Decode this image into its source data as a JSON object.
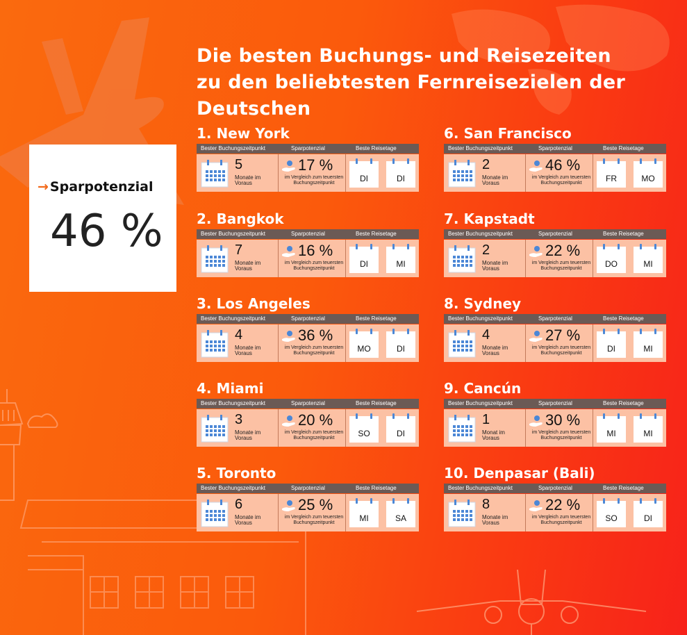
{
  "title_lines": [
    "Die besten Buchungs- und Reisezeiten",
    " zu den beliebtesten Fernreisezielen der",
    "Deutschen"
  ],
  "savings": {
    "arrow": "→",
    "label": "Sparpotenzial",
    "value": "46 %"
  },
  "colors": {
    "background_start": "#fa6a0e",
    "background_end": "#f7221a",
    "header_bar": "#6b5a55",
    "card_body": "#fcc1a4",
    "calendar_blue": "#4b87d6",
    "arrow_orange": "#f26a1b"
  },
  "icons": [
    "calendar-icon",
    "hand-coin-icon",
    "day-calendar-icon",
    "airplane-silhouette-icon",
    "control-tower-illustration",
    "world-map-illustration"
  ],
  "column_headers": {
    "booking": "Bester Buchungszeitpunkt",
    "savings": "Sparpotenzial",
    "days": "Beste Reisetage"
  },
  "destinations": [
    {
      "name": "1. New York",
      "months": "5",
      "months_label": "Monate im Voraus",
      "percent": "17 %",
      "percent_label": "im Vergleich zum teuersten Buchungszeitpunkt",
      "day1": "DI",
      "day2": "DI"
    },
    {
      "name": "2. Bangkok",
      "months": "7",
      "months_label": "Monate im Voraus",
      "percent": "16 %",
      "percent_label": "im Vergleich zum teuersten Buchungszeitpunkt",
      "day1": "DI",
      "day2": "MI"
    },
    {
      "name": "3. Los Angeles",
      "months": "4",
      "months_label": "Monate im Voraus",
      "percent": "36 %",
      "percent_label": "im Vergleich zum teuersten Buchungszeitpunkt",
      "day1": "MO",
      "day2": "DI"
    },
    {
      "name": "4. Miami",
      "months": "3",
      "months_label": "Monate im Voraus",
      "percent": "20 %",
      "percent_label": "im Vergleich zum teuersten Buchungszeitpunkt",
      "day1": "SO",
      "day2": "DI"
    },
    {
      "name": "5. Toronto",
      "months": "6",
      "months_label": "Monate im Voraus",
      "percent": "25 %",
      "percent_label": "im Vergleich zum teuersten Buchungszeitpunkt",
      "day1": "MI",
      "day2": "SA"
    },
    {
      "name": "6. San Francisco",
      "months": "2",
      "months_label": "Monate im Voraus",
      "percent": "46 %",
      "percent_label": "im Vergleich zum teuersten Buchungszeitpunkt",
      "day1": "FR",
      "day2": "MO"
    },
    {
      "name": "7. Kapstadt",
      "months": "2",
      "months_label": "Monate im Voraus",
      "percent": "22 %",
      "percent_label": "im Vergleich zum teuersten Buchungszeitpunkt",
      "day1": "DO",
      "day2": "MI"
    },
    {
      "name": "8. Sydney",
      "months": "4",
      "months_label": "Monate im Voraus",
      "percent": "27 %",
      "percent_label": "im Vergleich zum teuersten Buchungszeitpunkt",
      "day1": "DI",
      "day2": "MI"
    },
    {
      "name": "9. Cancún",
      "months": "1",
      "months_label": "Monat im Voraus",
      "percent": "30 %",
      "percent_label": "im Vergleich zum teuersten Buchungszeitpunkt",
      "day1": "MI",
      "day2": "MI"
    },
    {
      "name": "10. Denpasar (Bali)",
      "months": "8",
      "months_label": "Monate im Voraus",
      "percent": "22 %",
      "percent_label": "im Vergleich zum teuersten Buchungszeitpunkt",
      "day1": "SO",
      "day2": "DI"
    }
  ]
}
